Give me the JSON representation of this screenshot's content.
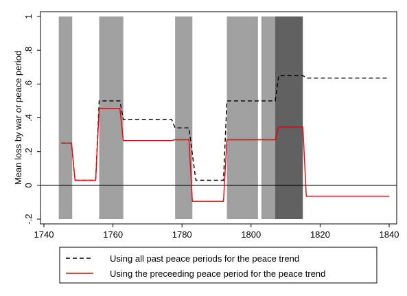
{
  "chart_data": {
    "type": "line",
    "title": "",
    "xlabel": "",
    "ylabel": "Mean loss by war or peace period",
    "xlim": [
      1740,
      1840
    ],
    "ylim": [
      -0.2,
      1.0
    ],
    "x_ticks": [
      1740,
      1760,
      1780,
      1800,
      1820,
      1840
    ],
    "x_tick_labels": [
      "1740",
      "1760",
      "1780",
      "1800",
      "1820",
      "1840"
    ],
    "y_ticks": [
      -0.2,
      0,
      0.2,
      0.4,
      0.6,
      0.8,
      1.0
    ],
    "y_tick_labels": [
      "-.2",
      "0",
      ".2",
      ".4",
      ".6",
      ".8",
      "1"
    ],
    "grid": false,
    "reference_line_y": 0,
    "war_periods": [
      {
        "start": 1744.3,
        "end": 1748.2,
        "shade": "light"
      },
      {
        "start": 1756.0,
        "end": 1763.0,
        "shade": "light"
      },
      {
        "start": 1778.0,
        "end": 1783.0,
        "shade": "light"
      },
      {
        "start": 1793.0,
        "end": 1802.0,
        "shade": "light"
      },
      {
        "start": 1803.0,
        "end": 1807.0,
        "shade": "light"
      },
      {
        "start": 1807.0,
        "end": 1815.0,
        "shade": "dark"
      }
    ],
    "series": [
      {
        "name": "Using all past peace periods for the peace trend",
        "style": "dashed",
        "color": "#000000",
        "x": [
          1745,
          1748,
          1749,
          1755,
          1756,
          1762,
          1763,
          1777,
          1778,
          1782,
          1784,
          1792,
          1793,
          1807,
          1808,
          1815,
          1816,
          1840
        ],
        "y": [
          0.25,
          0.25,
          0.03,
          0.03,
          0.5,
          0.5,
          0.39,
          0.39,
          0.34,
          0.34,
          0.03,
          0.03,
          0.5,
          0.5,
          0.65,
          0.65,
          0.635,
          0.635
        ]
      },
      {
        "name": "Using the preceeding peace period for the peace trend",
        "style": "solid",
        "color": "#e8000b",
        "x": [
          1745,
          1748,
          1749,
          1755,
          1756,
          1762,
          1763,
          1777,
          1778,
          1782,
          1783,
          1792,
          1793,
          1807,
          1808,
          1815,
          1816,
          1840
        ],
        "y": [
          0.25,
          0.25,
          0.03,
          0.03,
          0.455,
          0.455,
          0.265,
          0.265,
          0.27,
          0.27,
          -0.095,
          -0.095,
          0.27,
          0.27,
          0.345,
          0.345,
          -0.065,
          -0.065
        ]
      }
    ],
    "legend": {
      "placement": "bottom",
      "entries": [
        "Using all past peace periods for the peace trend",
        "Using the preceeding peace period for the peace trend"
      ]
    },
    "colors": {
      "war_light": "#a0a0a0",
      "war_dark": "#616161",
      "dashed_line": "#000000",
      "solid_line": "#e8000b"
    }
  }
}
